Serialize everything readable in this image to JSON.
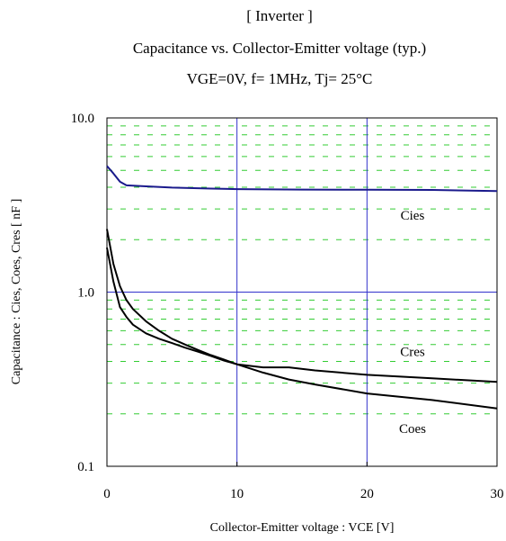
{
  "chart_data": {
    "type": "line",
    "title": "[ Inverter ]",
    "subtitle_lines": [
      "Capacitance  vs.  Collector-Emitter voltage  (typ.)",
      "VGE=0V,  f= 1MHz,  Tj= 25°C"
    ],
    "xlabel": "Collector-Emitter voltage : VCE [V]",
    "ylabel": "Capacitance  :  Cies, Coes, Cres  [ nF ]",
    "xlim": [
      0,
      30
    ],
    "ylim": [
      0.1,
      10.0
    ],
    "yscale": "log",
    "xticks": [
      "0",
      "10",
      "20",
      "30"
    ],
    "yticks": [
      "0.1",
      "1.0",
      "10.0"
    ],
    "grid": "major solid lines; minor dashed lines on log y-axis",
    "colors": {
      "cies": "#1a1a8c",
      "other": "#000000",
      "major_grid": "#3333cc",
      "minor_grid": "#33cc33"
    },
    "series": [
      {
        "name": "Cies",
        "x": [
          0,
          0.5,
          1,
          1.5,
          3,
          5,
          8,
          10,
          15,
          20,
          25,
          30
        ],
        "y": [
          5.3,
          4.8,
          4.3,
          4.1,
          4.05,
          3.98,
          3.93,
          3.9,
          3.88,
          3.87,
          3.86,
          3.8
        ]
      },
      {
        "name": "Cres",
        "x": [
          0,
          0.5,
          1,
          1.5,
          2,
          3,
          4,
          5,
          6,
          7,
          8,
          9,
          10,
          12,
          14,
          16,
          20,
          25,
          30
        ],
        "y": [
          1.8,
          1.15,
          0.82,
          0.72,
          0.65,
          0.58,
          0.54,
          0.51,
          0.48,
          0.455,
          0.43,
          0.405,
          0.385,
          0.37,
          0.37,
          0.355,
          0.335,
          0.32,
          0.305
        ]
      },
      {
        "name": "Coes",
        "x": [
          0,
          0.5,
          1,
          1.5,
          2,
          3,
          4,
          5,
          6,
          7,
          8,
          9,
          10,
          12,
          14,
          16,
          20,
          25,
          30
        ],
        "y": [
          2.3,
          1.45,
          1.08,
          0.9,
          0.8,
          0.68,
          0.6,
          0.54,
          0.5,
          0.465,
          0.435,
          0.41,
          0.385,
          0.345,
          0.315,
          0.295,
          0.262,
          0.24,
          0.215
        ]
      }
    ]
  }
}
